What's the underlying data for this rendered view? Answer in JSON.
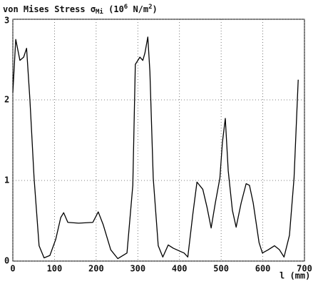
{
  "chart_data": {
    "type": "line",
    "title_parts": [
      {
        "text": "von Mises Stress σ"
      },
      {
        "text": "Mi",
        "baseline": "sub"
      },
      {
        "text": " (10"
      },
      {
        "text": "6",
        "baseline": "super"
      },
      {
        "text": " N/m"
      },
      {
        "text": "2",
        "baseline": "super"
      },
      {
        "text": ")"
      }
    ],
    "x_label": "l (mm)",
    "x": [
      0,
      7,
      17,
      26,
      33,
      41,
      51,
      63,
      75,
      89,
      103,
      115,
      122,
      132,
      158,
      192,
      205,
      217,
      235,
      252,
      274,
      288,
      294,
      305,
      312,
      317,
      324,
      329,
      337,
      349,
      360,
      373,
      385,
      402,
      411,
      420,
      432,
      442,
      456,
      466,
      476,
      486,
      497,
      503,
      510,
      517,
      527,
      536,
      548,
      560,
      568,
      577,
      591,
      599,
      613,
      628,
      640,
      651,
      664,
      675,
      685
    ],
    "values": [
      2.09,
      2.75,
      2.49,
      2.53,
      2.64,
      2.0,
      1.03,
      0.19,
      0.04,
      0.07,
      0.27,
      0.54,
      0.6,
      0.48,
      0.47,
      0.48,
      0.61,
      0.45,
      0.14,
      0.03,
      0.1,
      0.94,
      2.44,
      2.53,
      2.49,
      2.58,
      2.78,
      2.35,
      1.03,
      0.19,
      0.05,
      0.2,
      0.16,
      0.12,
      0.1,
      0.05,
      0.58,
      0.98,
      0.89,
      0.67,
      0.41,
      0.72,
      1.03,
      1.47,
      1.77,
      1.12,
      0.63,
      0.42,
      0.72,
      0.96,
      0.94,
      0.72,
      0.23,
      0.1,
      0.14,
      0.19,
      0.14,
      0.05,
      0.32,
      1.03,
      2.25
    ],
    "color": "#000000",
    "xlim": [
      0,
      700
    ],
    "xticks": [
      0,
      100,
      200,
      300,
      400,
      500,
      600,
      700
    ],
    "ylim": [
      0,
      3
    ],
    "yticks": [
      0,
      1,
      2,
      3
    ],
    "grid": true
  }
}
